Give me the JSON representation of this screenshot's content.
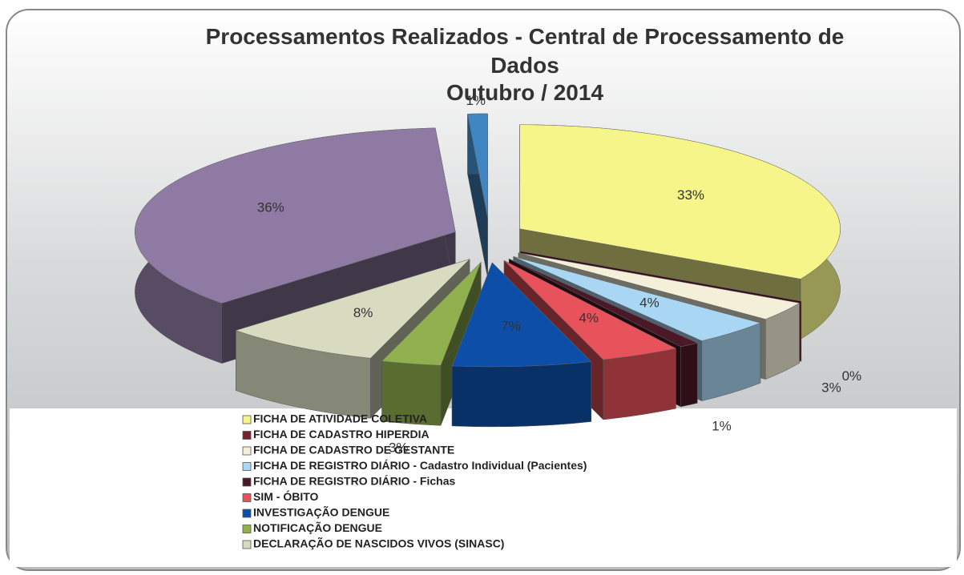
{
  "chart_data": {
    "type": "pie3d",
    "title": "Processamentos Realizados - Central de Processamento de Dados",
    "subtitle": "Outubro / 2014",
    "categories": [
      "FICHA DE ATIVIDADE COLETIVA",
      "FICHA DE CADASTRO HIPERDIA",
      "FICHA DE CADASTRO DE GESTANTE",
      "FICHA DE REGISTRO DIÁRIO - Cadastro Individual (Pacientes)",
      "FICHA DE REGISTRO DIÁRIO - Fichas",
      "SIM - ÓBITO",
      "INVESTIGAÇÃO DENGUE",
      "NOTIFICAÇÃO DENGUE",
      "DECLARAÇÃO DE NASCIDOS VIVOS (SINASC)",
      null,
      null
    ],
    "values": [
      33,
      0,
      3,
      4,
      1,
      4,
      7,
      3,
      8,
      36,
      1
    ],
    "value_labels": [
      "33%",
      "0%",
      "3%",
      "4%",
      "1%",
      "4%",
      "7%",
      "3%",
      "8%",
      "36%",
      "1%"
    ],
    "colors": [
      "#f5f58a",
      "#7a1f2e",
      "#f3efd9",
      "#a9d6f2",
      "#4a1826",
      "#e8525a",
      "#0d4fa8",
      "#8fb04d",
      "#d8dbc0",
      "#8e7aa3",
      "#3f86c2"
    ]
  }
}
